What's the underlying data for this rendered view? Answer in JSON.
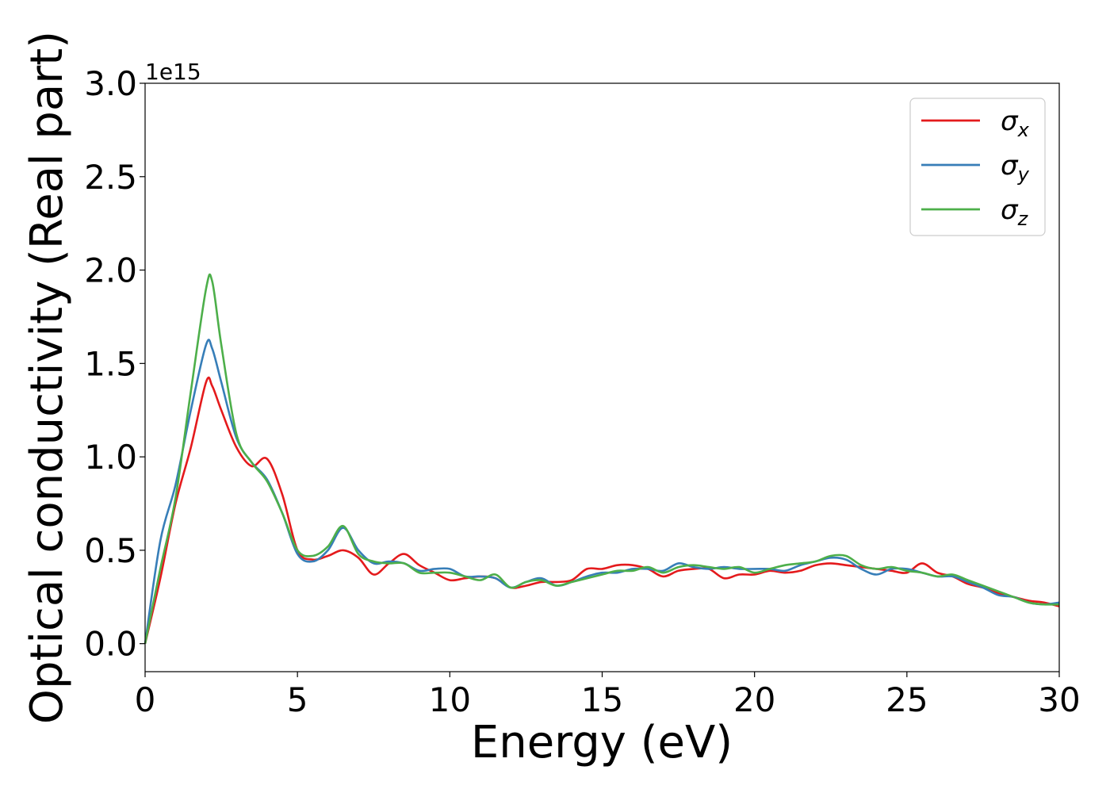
{
  "chart_data": {
    "type": "line",
    "title": "",
    "xlabel": "Energy (eV)",
    "ylabel": "Optical conductivity (Real part)",
    "y_offset_label": "1e15",
    "xlim": [
      0,
      30
    ],
    "ylim": [
      -0.15,
      3.0
    ],
    "x_ticks": [
      0,
      5,
      10,
      15,
      20,
      25,
      30
    ],
    "x_tick_labels": [
      "0",
      "5",
      "10",
      "15",
      "20",
      "25",
      "30"
    ],
    "y_ticks": [
      0.0,
      0.5,
      1.0,
      1.5,
      2.0,
      2.5,
      3.0
    ],
    "y_tick_labels": [
      "0.0",
      "0.5",
      "1.0",
      "1.5",
      "2.0",
      "2.5",
      "3.0"
    ],
    "grid": false,
    "legend_position": "top-right",
    "x": [
      0,
      0.5,
      1,
      1.5,
      2,
      2.2,
      2.5,
      3,
      3.5,
      4,
      4.5,
      5,
      5.5,
      6,
      6.5,
      7,
      7.5,
      8,
      8.5,
      9,
      9.5,
      10,
      10.5,
      11,
      11.5,
      12,
      12.5,
      13,
      13.5,
      14,
      14.5,
      15,
      15.5,
      16,
      16.5,
      17,
      17.5,
      18,
      18.5,
      19,
      19.5,
      20,
      20.5,
      21,
      21.5,
      22,
      22.5,
      23,
      23.5,
      24,
      24.5,
      25,
      25.5,
      26,
      26.5,
      27,
      27.5,
      28,
      28.5,
      29,
      29.5,
      30
    ],
    "series": [
      {
        "name": "σ",
        "subscript": "x",
        "color": "#e41a1c",
        "values": [
          0.0,
          0.35,
          0.75,
          1.05,
          1.4,
          1.38,
          1.25,
          1.05,
          0.95,
          0.99,
          0.8,
          0.5,
          0.45,
          0.47,
          0.5,
          0.46,
          0.37,
          0.43,
          0.48,
          0.42,
          0.38,
          0.34,
          0.35,
          0.36,
          0.35,
          0.3,
          0.31,
          0.33,
          0.33,
          0.34,
          0.4,
          0.4,
          0.42,
          0.42,
          0.4,
          0.36,
          0.39,
          0.4,
          0.4,
          0.35,
          0.37,
          0.37,
          0.39,
          0.38,
          0.39,
          0.42,
          0.43,
          0.42,
          0.41,
          0.4,
          0.39,
          0.38,
          0.43,
          0.38,
          0.36,
          0.32,
          0.3,
          0.27,
          0.25,
          0.23,
          0.22,
          0.2
        ]
      },
      {
        "name": "σ",
        "subscript": "y",
        "color": "#377eb8",
        "values": [
          0.0,
          0.55,
          0.85,
          1.25,
          1.6,
          1.58,
          1.4,
          1.1,
          0.97,
          0.88,
          0.7,
          0.48,
          0.44,
          0.5,
          0.62,
          0.5,
          0.43,
          0.44,
          0.43,
          0.39,
          0.4,
          0.4,
          0.36,
          0.36,
          0.35,
          0.3,
          0.33,
          0.35,
          0.31,
          0.33,
          0.36,
          0.38,
          0.38,
          0.4,
          0.4,
          0.39,
          0.43,
          0.41,
          0.4,
          0.41,
          0.4,
          0.4,
          0.4,
          0.39,
          0.42,
          0.44,
          0.46,
          0.45,
          0.4,
          0.37,
          0.4,
          0.4,
          0.38,
          0.36,
          0.36,
          0.33,
          0.3,
          0.26,
          0.25,
          0.22,
          0.21,
          0.22
        ]
      },
      {
        "name": "σ",
        "subscript": "z",
        "color": "#4daf4a",
        "values": [
          0.0,
          0.4,
          0.78,
          1.35,
          1.9,
          1.94,
          1.6,
          1.12,
          0.97,
          0.87,
          0.7,
          0.5,
          0.47,
          0.52,
          0.63,
          0.48,
          0.44,
          0.43,
          0.43,
          0.38,
          0.38,
          0.38,
          0.36,
          0.34,
          0.37,
          0.3,
          0.33,
          0.34,
          0.31,
          0.33,
          0.35,
          0.37,
          0.39,
          0.39,
          0.41,
          0.38,
          0.41,
          0.42,
          0.41,
          0.4,
          0.41,
          0.38,
          0.4,
          0.42,
          0.43,
          0.44,
          0.47,
          0.47,
          0.42,
          0.4,
          0.41,
          0.39,
          0.38,
          0.36,
          0.37,
          0.34,
          0.31,
          0.28,
          0.25,
          0.22,
          0.21,
          0.21
        ]
      }
    ]
  }
}
